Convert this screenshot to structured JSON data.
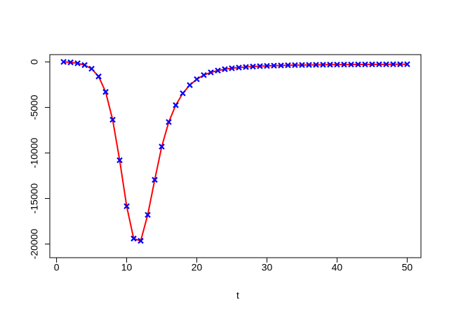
{
  "chart_data": {
    "type": "scatter",
    "xlabel": "t",
    "x": [
      1,
      2,
      3,
      4,
      5,
      6,
      7,
      8,
      9,
      10,
      11,
      12,
      13,
      14,
      15,
      16,
      17,
      18,
      19,
      20,
      21,
      22,
      23,
      24,
      25,
      26,
      27,
      28,
      29,
      30,
      31,
      32,
      33,
      34,
      35,
      36,
      37,
      38,
      39,
      40,
      41,
      42,
      43,
      44,
      45,
      46,
      47,
      48,
      49,
      50
    ],
    "values": [
      0,
      -50,
      -150,
      -350,
      -750,
      -1600,
      -3300,
      -6350,
      -10800,
      -15850,
      -19400,
      -19650,
      -16800,
      -12950,
      -9300,
      -6600,
      -4750,
      -3450,
      -2550,
      -1900,
      -1450,
      -1150,
      -950,
      -800,
      -700,
      -620,
      -560,
      -510,
      -470,
      -440,
      -410,
      -390,
      -370,
      -355,
      -340,
      -330,
      -320,
      -310,
      -300,
      -295,
      -290,
      -285,
      -280,
      -275,
      -270,
      -268,
      -265,
      -262,
      -260,
      -258
    ],
    "color": "#0000ff",
    "line_color": "#ff0000",
    "xlim": [
      -0.96,
      51.96
    ],
    "xticks": [
      0,
      10,
      20,
      30,
      40,
      50
    ],
    "ylim": [
      -21500,
      800
    ],
    "yticks": [
      0,
      -5000,
      -10000,
      -15000,
      -20000
    ]
  }
}
